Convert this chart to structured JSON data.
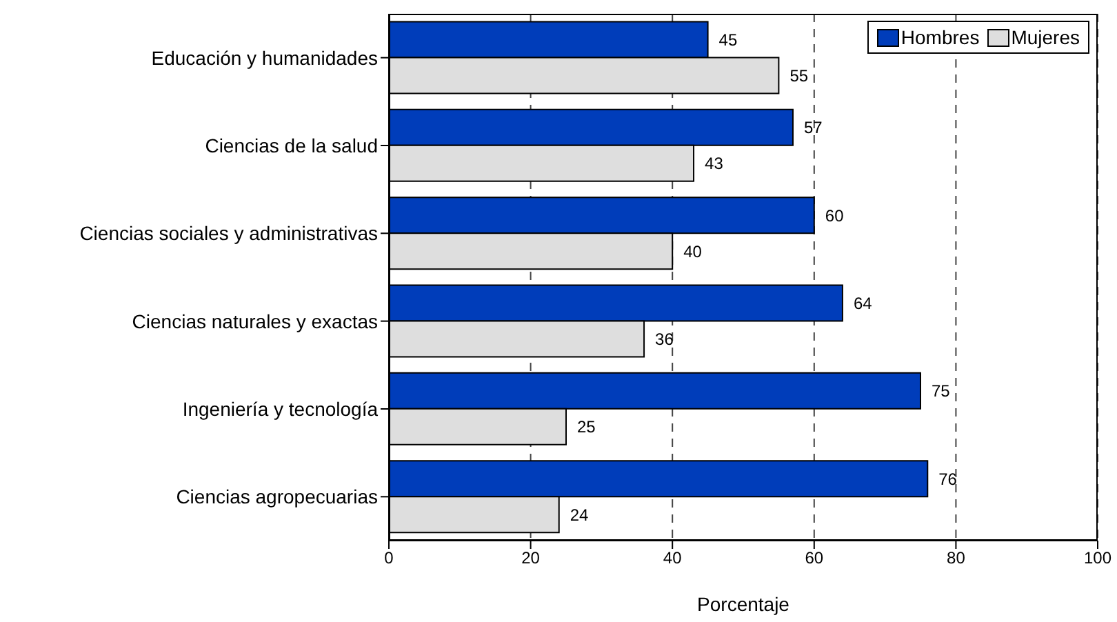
{
  "chart_data": {
    "type": "bar",
    "orientation": "horizontal",
    "xlabel": "Porcentaje",
    "categories": [
      "Educación y humanidades",
      "Ciencias de la salud",
      "Ciencias sociales y administrativas",
      "Ciencias naturales y exactas",
      "Ingeniería y tecnología",
      "Ciencias agropecuarias"
    ],
    "series": [
      {
        "name": "Hombres",
        "color": "#003dba",
        "values": [
          45,
          57,
          60,
          64,
          75,
          76
        ]
      },
      {
        "name": "Mujeres",
        "color": "#dedede",
        "values": [
          55,
          43,
          40,
          36,
          25,
          24
        ]
      }
    ],
    "xlim": [
      0,
      100
    ],
    "xticks": [
      0,
      20,
      40,
      60,
      80,
      100
    ],
    "grid": "x",
    "legend": "top right",
    "data_labels": true
  }
}
